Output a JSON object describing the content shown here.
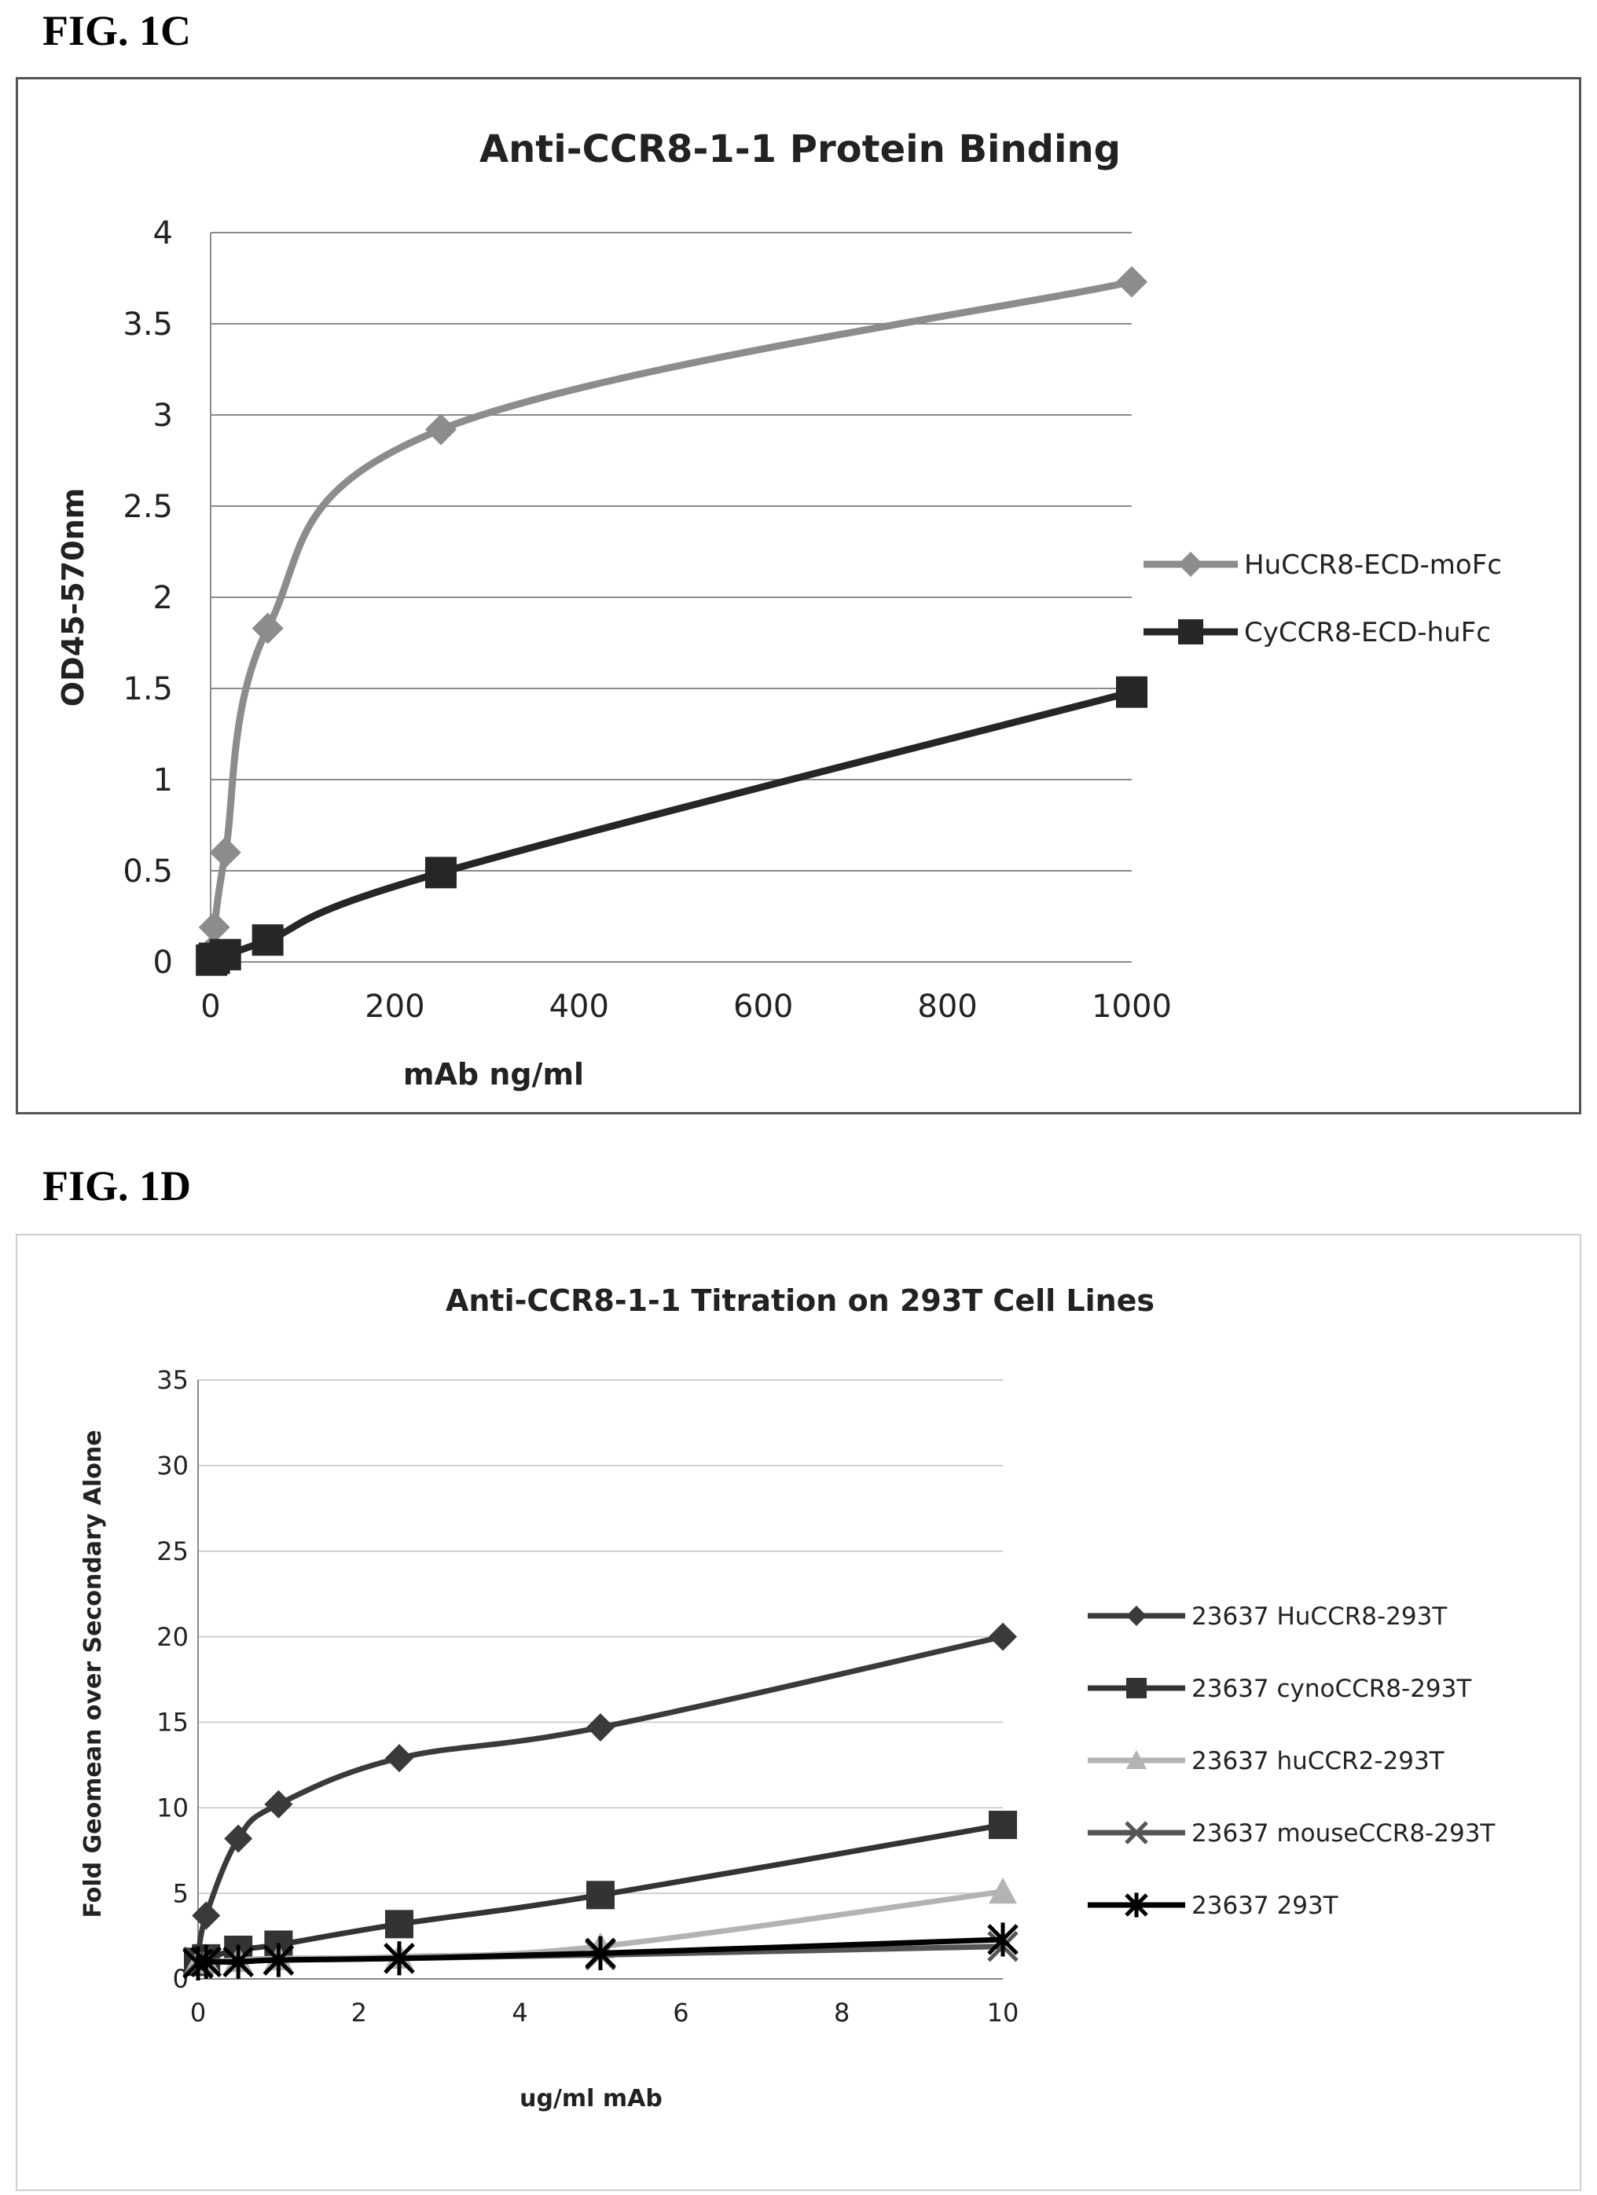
{
  "figures": {
    "fig1c_label": "FIG. 1C",
    "fig1d_label": "FIG. 1D"
  },
  "chart_data": [
    {
      "type": "line",
      "title": "Anti-CCR8-1-1 Protein  Binding",
      "xlabel": "mAb ng/ml",
      "ylabel": "OD45-570nm",
      "xlim": [
        0,
        1000
      ],
      "ylim": [
        0,
        4
      ],
      "xticks": [
        0,
        200,
        400,
        600,
        800,
        1000
      ],
      "yticks": [
        0,
        0.5,
        1,
        1.5,
        2,
        2.5,
        3,
        3.5,
        4
      ],
      "grid": "horizontal",
      "legend_position": "right",
      "series": [
        {
          "name": "HuCCR8-ECD-moFc",
          "color": "#8c8c8c",
          "marker": "diamond",
          "x": [
            1,
            4,
            16,
            62,
            250,
            1000
          ],
          "y": [
            0.06,
            0.19,
            0.6,
            1.83,
            2.92,
            3.73
          ]
        },
        {
          "name": "CyCCR8-ECD-huFc",
          "color": "#262626",
          "marker": "square",
          "x": [
            1,
            4,
            16,
            62,
            250,
            1000
          ],
          "y": [
            0.01,
            0.02,
            0.04,
            0.12,
            0.49,
            1.48
          ]
        }
      ]
    },
    {
      "type": "line",
      "title": "Anti-CCR8-1-1 Titration on 293T Cell Lines",
      "xlabel": "ug/ml mAb",
      "ylabel": "Fold Geomean over Secondary Alone",
      "xlim": [
        0,
        10
      ],
      "ylim": [
        0,
        35
      ],
      "xticks": [
        0,
        2,
        4,
        6,
        8,
        10
      ],
      "yticks": [
        0,
        5,
        10,
        15,
        20,
        25,
        30,
        35
      ],
      "grid": "horizontal",
      "legend_position": "right",
      "series": [
        {
          "name": "23637 HuCCR8-293T",
          "color": "#3a3a3a",
          "marker": "diamond",
          "x": [
            0,
            0.1,
            0.5,
            1,
            2.5,
            5,
            10
          ],
          "y": [
            1.2,
            3.7,
            8.2,
            10.2,
            12.9,
            14.7,
            20.0
          ]
        },
        {
          "name": "23637 cynoCCR8-293T",
          "color": "#333333",
          "marker": "square",
          "x": [
            0,
            0.1,
            0.5,
            1,
            2.5,
            5,
            10
          ],
          "y": [
            1.0,
            1.2,
            1.7,
            2.0,
            3.2,
            4.9,
            9.0
          ]
        },
        {
          "name": "23637 huCCR2-293T",
          "color": "#b3b3b3",
          "marker": "triangle",
          "x": [
            0,
            0.1,
            0.5,
            1,
            2.5,
            5,
            10
          ],
          "y": [
            1.0,
            1.0,
            1.1,
            1.2,
            1.3,
            1.9,
            5.1
          ]
        },
        {
          "name": "23637 mouseCCR8-293T",
          "color": "#555555",
          "marker": "x",
          "x": [
            0,
            0.1,
            0.5,
            1,
            2.5,
            5,
            10
          ],
          "y": [
            1.0,
            1.0,
            1.0,
            1.1,
            1.2,
            1.4,
            1.9
          ]
        },
        {
          "name": "23637 293T",
          "color": "#000000",
          "marker": "star",
          "x": [
            0,
            0.1,
            0.5,
            1,
            2.5,
            5,
            10
          ],
          "y": [
            0.9,
            1.0,
            1.0,
            1.1,
            1.2,
            1.5,
            2.3
          ]
        }
      ]
    }
  ]
}
